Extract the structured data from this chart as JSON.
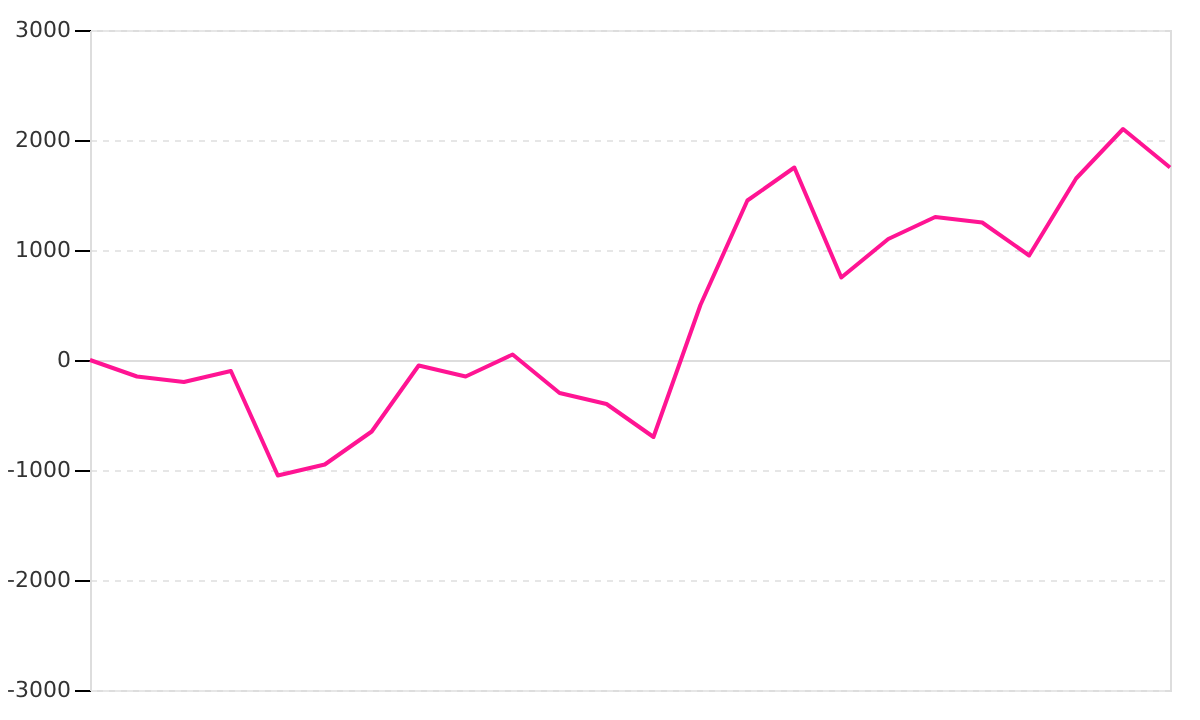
{
  "chart_data": {
    "type": "line",
    "categories": [
      null,
      null,
      null,
      null,
      null,
      null,
      null,
      null,
      null,
      null,
      null,
      null,
      null,
      null,
      null,
      null,
      null,
      null,
      null,
      null,
      null,
      null,
      null,
      null
    ],
    "series": [
      {
        "color": "#ff1493",
        "values": [
          0,
          -150,
          -200,
          -100,
          -1050,
          -950,
          -650,
          -50,
          -150,
          50,
          -300,
          -400,
          -700,
          500,
          1450,
          1750,
          750,
          1100,
          1300,
          1250,
          950,
          1650,
          2100,
          1750
        ]
      }
    ],
    "ylim": [
      -3000,
      3000
    ],
    "yticks": [
      -3000,
      -2000,
      -1000,
      0,
      1000,
      2000,
      3000
    ],
    "tick_labels": "y",
    "grid": "y",
    "marker": "none",
    "line_style": "solid"
  }
}
